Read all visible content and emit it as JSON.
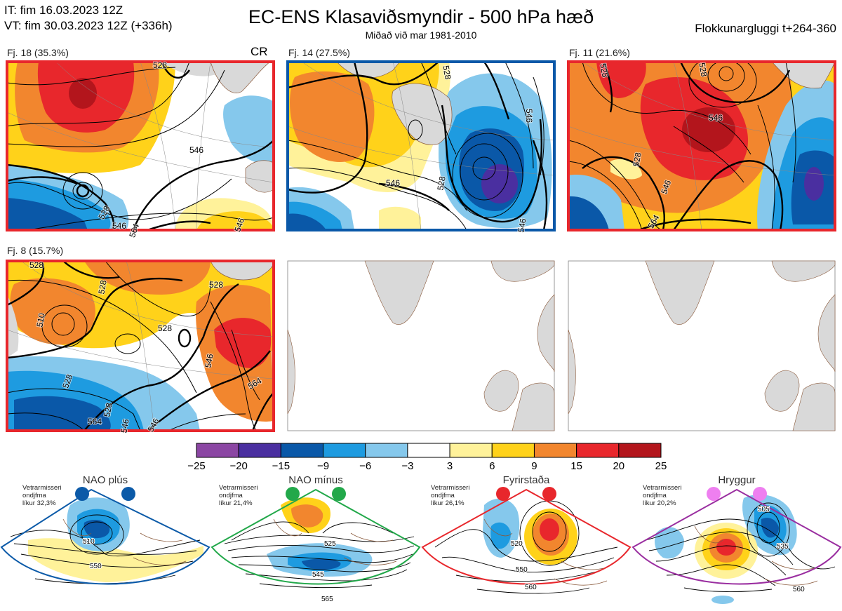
{
  "header": {
    "it": "IT: fim 16.03.2023 12Z",
    "vt": "VT: fim 30.03.2023 12Z  (+336h)",
    "title": "EC-ENS Klasaviðsmyndir - 500 hPa hæð",
    "subtitle": "Miðað við mar 1981-2010",
    "window": "Flokkunargluggi t+264-360"
  },
  "colors": {
    "scale": [
      "#8b46a3",
      "#4a2fa0",
      "#0a58a8",
      "#1e9be0",
      "#85c8ec",
      "#ffffff",
      "#fff29a",
      "#ffd21a",
      "#f2862e",
      "#e8272c",
      "#b3151c"
    ],
    "land": "#d9d9d9",
    "coast": "#8a5a3c",
    "nao_plus": "#0b5aa8",
    "nao_minus": "#22a84a",
    "blocking": "#e8272c",
    "ridge": "#9a2ea0"
  },
  "chart_data": {
    "type": "heatmap",
    "variable": "500 hPa geopotential height anomaly (dam)",
    "colorbar": {
      "ticks": [
        "−25",
        "−20",
        "−15",
        "−9",
        "−6",
        "−3",
        "3",
        "6",
        "9",
        "15",
        "20",
        "25"
      ],
      "bounds": [
        -25,
        -20,
        -15,
        -9,
        -6,
        -3,
        3,
        6,
        9,
        15,
        20,
        25
      ]
    },
    "clusters": [
      {
        "label": "Fj. 18 (35.3%)",
        "members": 18,
        "percent": 35.3,
        "regime": "blocking",
        "tag": "CR",
        "contour_labels": [
          "528",
          "546",
          "564",
          "528",
          "546",
          "546"
        ]
      },
      {
        "label": "Fj. 14 (27.5%)",
        "members": 14,
        "percent": 27.5,
        "regime": "nao_plus",
        "tag": "",
        "contour_labels": [
          "528",
          "546",
          "528",
          "546",
          "546"
        ]
      },
      {
        "label": "Fj. 11 (21.6%)",
        "members": 11,
        "percent": 21.6,
        "regime": "blocking",
        "tag": "",
        "contour_labels": [
          "528",
          "528",
          "546",
          "528",
          "546",
          "564"
        ]
      },
      {
        "label": "Fj. 8 (15.7%)",
        "members": 8,
        "percent": 15.7,
        "regime": "blocking",
        "tag": "",
        "contour_labels": [
          "528",
          "528",
          "510",
          "528",
          "528",
          "546",
          "528",
          "546",
          "564",
          "528",
          "546",
          "564"
        ]
      }
    ],
    "regimes": [
      {
        "name": "NAO plús",
        "stat": [
          "Vetrarmisseri",
          "ondjfma",
          "líkur 32,3%"
        ],
        "contours": [
          "510",
          "550"
        ]
      },
      {
        "name": "NAO mínus",
        "stat": [
          "Vetrarmisseri",
          "ondjfma",
          "líkur 21,4%"
        ],
        "contours": [
          "525",
          "545",
          "565"
        ]
      },
      {
        "name": "Fyrirstaða",
        "stat": [
          "Vetrarmisseri",
          "ondjfma",
          "líkur 26,1%"
        ],
        "contours": [
          "520",
          "550",
          "560"
        ]
      },
      {
        "name": "Hryggur",
        "stat": [
          "Vetrarmisseri",
          "ondjfma",
          "líkur 20,2%"
        ],
        "contours": [
          "505",
          "535",
          "560"
        ]
      }
    ]
  }
}
